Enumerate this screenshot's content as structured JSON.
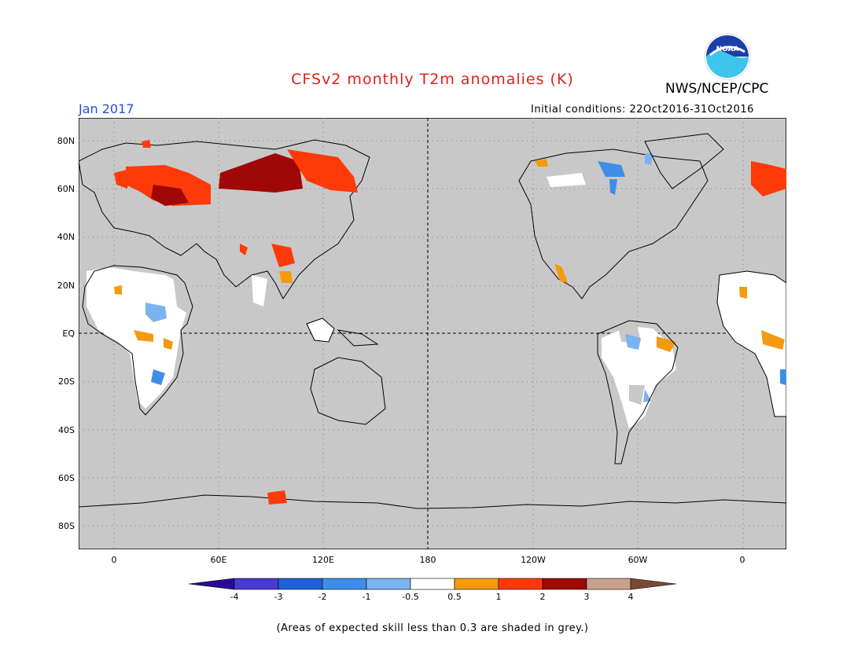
{
  "header": {
    "title": "CFSv2 monthly T2m anomalies (K)",
    "agency": "NWS/NCEP/CPC",
    "period": "Jan 2017",
    "initial_conditions": "Initial conditions: 22Oct2016-31Oct2016",
    "logo_text": "NOAA"
  },
  "map": {
    "lat_labels": [
      "80N",
      "60N",
      "40N",
      "20N",
      "EQ",
      "20S",
      "40S",
      "60S",
      "80S"
    ],
    "lon_labels": [
      "0",
      "60E",
      "120E",
      "180",
      "120W",
      "60W",
      "0"
    ],
    "background_color": "#c8c8c8",
    "skill_mask_color": "#c8c8c8"
  },
  "colorbar": {
    "labels": [
      "-4",
      "-3",
      "-2",
      "-1",
      "-0.5",
      "0.5",
      "1",
      "2",
      "3",
      "4"
    ],
    "colors": [
      "#2a0a9a",
      "#4a3acf",
      "#1f60d9",
      "#3e8ee8",
      "#7ab3f0",
      "#ffffff",
      "#f59a10",
      "#ff3a0a",
      "#a00808",
      "#c8a090",
      "#7a4a36"
    ]
  },
  "footer": {
    "note": "(Areas of expected skill less than 0.3 are shaded in grey.)"
  }
}
